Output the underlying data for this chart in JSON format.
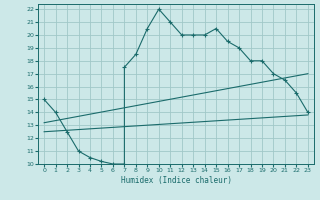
{
  "xlabel": "Humidex (Indice chaleur)",
  "bg_color": "#cce8e8",
  "grid_color": "#a0c8c8",
  "line_color": "#1a6b6b",
  "xlim": [
    -0.5,
    23.5
  ],
  "ylim": [
    10,
    22.4
  ],
  "xticks": [
    0,
    1,
    2,
    3,
    4,
    5,
    6,
    7,
    8,
    9,
    10,
    11,
    12,
    13,
    14,
    15,
    16,
    17,
    18,
    19,
    20,
    21,
    22,
    23
  ],
  "yticks": [
    10,
    11,
    12,
    13,
    14,
    15,
    16,
    17,
    18,
    19,
    20,
    21,
    22
  ],
  "curve1_x": [
    0,
    1,
    2,
    3,
    4,
    5,
    6,
    7,
    7,
    8,
    9,
    10,
    11,
    12,
    13,
    14,
    15,
    16,
    17,
    18,
    19,
    20,
    21,
    22,
    23
  ],
  "curve1_y": [
    15,
    14,
    12.5,
    11,
    10.5,
    10.2,
    10,
    10,
    17.5,
    18.5,
    20.5,
    22,
    21,
    20,
    20,
    20,
    20.5,
    19.5,
    19,
    18,
    18,
    17,
    16.5,
    15.5,
    14
  ],
  "curve2_x": [
    0,
    23
  ],
  "curve2_y": [
    12.5,
    13.8
  ],
  "curve3_x": [
    0,
    23
  ],
  "curve3_y": [
    13.2,
    17.0
  ]
}
